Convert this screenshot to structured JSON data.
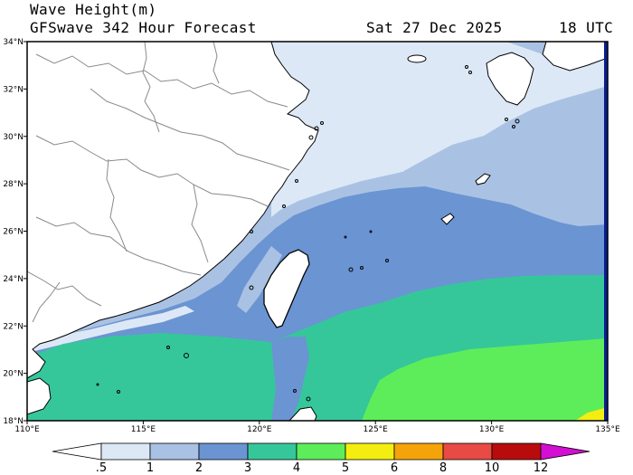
{
  "header": {
    "title": "Wave Height(m)",
    "subtitle": "GFSwave 342 Hour Forecast",
    "date": "Sat 27 Dec 2025",
    "time": "18 UTC"
  },
  "map": {
    "lon_range": [
      110,
      135
    ],
    "lat_range": [
      18,
      34
    ],
    "lon_ticks": [
      "110°E",
      "115°E",
      "120°E",
      "125°E",
      "130°E",
      "135°E"
    ],
    "lat_ticks": [
      "18°N",
      "20°N",
      "22°N",
      "24°N",
      "26°N",
      "28°N",
      "30°N",
      "32°N",
      "34°N"
    ],
    "colors": {
      "land": "#ffffff",
      "borders": "#8a8a8a",
      "coast": "#000000",
      "right_edge": "#0a1f8f"
    }
  },
  "colorbar": {
    "labels": [
      ".5",
      "1",
      "2",
      "3",
      "4",
      "5",
      "6",
      "8",
      "10",
      "12"
    ],
    "colors": [
      "#ffffff",
      "#dde8f6",
      "#a9c2e4",
      "#6b94d2",
      "#35c79a",
      "#5ded5a",
      "#f3ee0f",
      "#f5a30a",
      "#e84a44",
      "#b80c0c",
      "#d20fd2"
    ]
  }
}
